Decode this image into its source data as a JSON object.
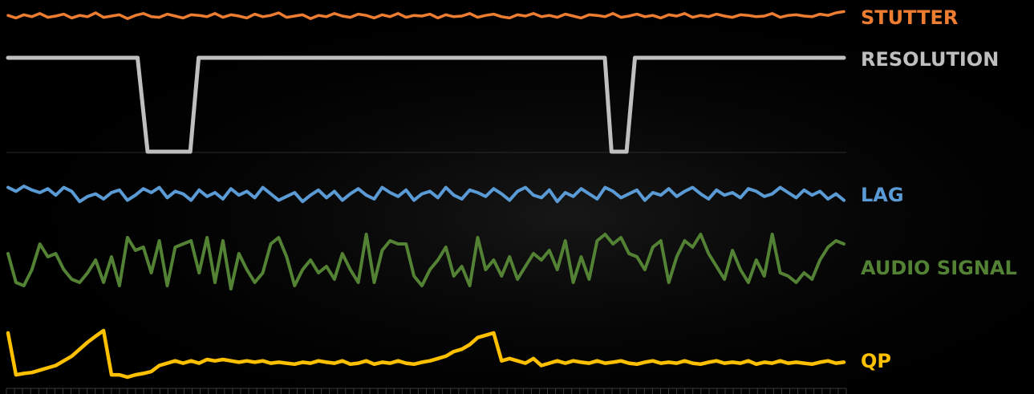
{
  "chart_data": {
    "type": "line",
    "title": "",
    "xlabel": "",
    "ylabel": "",
    "grid": false,
    "legend": "none",
    "series": [
      {
        "name": "STUTTER",
        "color": "#ED7D31",
        "values": [
          0.55,
          0.35,
          0.6,
          0.45,
          0.7,
          0.4,
          0.5,
          0.65,
          0.35,
          0.55,
          0.45,
          0.75,
          0.4,
          0.5,
          0.6,
          0.3,
          0.55,
          0.7,
          0.45,
          0.4,
          0.65,
          0.5,
          0.35,
          0.6,
          0.55,
          0.45,
          0.7,
          0.4,
          0.6,
          0.5,
          0.35,
          0.65,
          0.45,
          0.55,
          0.75,
          0.4,
          0.5,
          0.6,
          0.3,
          0.55,
          0.45,
          0.7,
          0.5,
          0.4,
          0.65,
          0.55,
          0.35,
          0.6,
          0.45,
          0.7,
          0.4,
          0.55,
          0.5,
          0.65,
          0.35,
          0.6,
          0.45,
          0.5,
          0.7,
          0.4,
          0.55,
          0.65,
          0.45,
          0.35,
          0.6,
          0.5,
          0.7,
          0.45,
          0.55,
          0.4,
          0.65,
          0.5,
          0.35,
          0.6,
          0.55,
          0.45,
          0.7,
          0.4,
          0.5,
          0.65,
          0.45,
          0.55,
          0.35,
          0.6,
          0.5,
          0.7,
          0.4,
          0.55,
          0.45,
          0.65,
          0.5,
          0.4,
          0.6,
          0.55,
          0.45,
          0.5,
          0.7,
          0.4,
          0.55,
          0.6,
          0.5,
          0.45,
          0.65,
          0.55,
          0.75,
          0.85
        ]
      },
      {
        "name": "RESOLUTION",
        "color": "#BFBFBF",
        "x": [
          0,
          0.155,
          0.167,
          0.218,
          0.228,
          0.714,
          0.722,
          0.74,
          0.75,
          1
        ],
        "values": [
          1,
          1,
          0,
          0,
          1,
          1,
          0,
          0,
          1,
          1
        ]
      },
      {
        "name": "LAG",
        "color": "#5B9BD5",
        "values": [
          0.7,
          0.55,
          0.75,
          0.6,
          0.5,
          0.65,
          0.4,
          0.7,
          0.55,
          0.15,
          0.35,
          0.45,
          0.25,
          0.5,
          0.6,
          0.2,
          0.4,
          0.65,
          0.5,
          0.7,
          0.3,
          0.55,
          0.45,
          0.2,
          0.6,
          0.35,
          0.5,
          0.25,
          0.65,
          0.4,
          0.55,
          0.3,
          0.7,
          0.45,
          0.2,
          0.35,
          0.5,
          0.15,
          0.4,
          0.6,
          0.3,
          0.55,
          0.2,
          0.45,
          0.65,
          0.4,
          0.25,
          0.7,
          0.5,
          0.35,
          0.6,
          0.2,
          0.45,
          0.55,
          0.3,
          0.7,
          0.4,
          0.25,
          0.6,
          0.5,
          0.35,
          0.65,
          0.45,
          0.2,
          0.55,
          0.7,
          0.4,
          0.3,
          0.6,
          0.15,
          0.5,
          0.35,
          0.65,
          0.45,
          0.25,
          0.7,
          0.55,
          0.3,
          0.45,
          0.6,
          0.2,
          0.5,
          0.4,
          0.65,
          0.35,
          0.55,
          0.7,
          0.45,
          0.25,
          0.6,
          0.4,
          0.5,
          0.3,
          0.65,
          0.55,
          0.35,
          0.45,
          0.7,
          0.5,
          0.3,
          0.6,
          0.4,
          0.55,
          0.25,
          0.45,
          0.2
        ]
      },
      {
        "name": "AUDIO SIGNAL",
        "color": "#548235",
        "values": [
          0.65,
          0.2,
          0.15,
          0.4,
          0.8,
          0.6,
          0.65,
          0.4,
          0.25,
          0.2,
          0.35,
          0.55,
          0.2,
          0.6,
          0.15,
          0.9,
          0.7,
          0.75,
          0.35,
          0.85,
          0.15,
          0.75,
          0.8,
          0.85,
          0.35,
          0.9,
          0.2,
          0.85,
          0.1,
          0.65,
          0.4,
          0.2,
          0.35,
          0.8,
          0.9,
          0.6,
          0.15,
          0.4,
          0.55,
          0.35,
          0.45,
          0.25,
          0.65,
          0.4,
          0.2,
          0.95,
          0.2,
          0.7,
          0.85,
          0.8,
          0.8,
          0.3,
          0.15,
          0.4,
          0.55,
          0.75,
          0.3,
          0.45,
          0.15,
          0.9,
          0.4,
          0.55,
          0.3,
          0.6,
          0.25,
          0.45,
          0.65,
          0.55,
          0.7,
          0.4,
          0.85,
          0.2,
          0.6,
          0.25,
          0.85,
          0.95,
          0.8,
          0.9,
          0.65,
          0.6,
          0.4,
          0.75,
          0.85,
          0.2,
          0.6,
          0.85,
          0.75,
          0.95,
          0.65,
          0.45,
          0.25,
          0.7,
          0.4,
          0.2,
          0.55,
          0.3,
          0.95,
          0.35,
          0.3,
          0.2,
          0.35,
          0.25,
          0.55,
          0.75,
          0.85,
          0.8
        ]
      },
      {
        "name": "QP",
        "color": "#FFC000",
        "values": [
          0.95,
          0.05,
          0.08,
          0.1,
          0.15,
          0.2,
          0.25,
          0.35,
          0.45,
          0.6,
          0.75,
          0.88,
          1.0,
          0.05,
          0.05,
          0.0,
          0.05,
          0.08,
          0.12,
          0.25,
          0.3,
          0.35,
          0.3,
          0.35,
          0.3,
          0.38,
          0.35,
          0.38,
          0.35,
          0.32,
          0.35,
          0.32,
          0.35,
          0.3,
          0.32,
          0.3,
          0.28,
          0.32,
          0.3,
          0.35,
          0.32,
          0.3,
          0.35,
          0.28,
          0.3,
          0.35,
          0.28,
          0.32,
          0.3,
          0.35,
          0.3,
          0.28,
          0.32,
          0.35,
          0.4,
          0.45,
          0.55,
          0.6,
          0.7,
          0.85,
          0.9,
          0.95,
          0.35,
          0.4,
          0.35,
          0.3,
          0.4,
          0.25,
          0.3,
          0.35,
          0.3,
          0.35,
          0.32,
          0.3,
          0.35,
          0.3,
          0.32,
          0.35,
          0.3,
          0.28,
          0.32,
          0.35,
          0.3,
          0.32,
          0.3,
          0.35,
          0.3,
          0.28,
          0.32,
          0.35,
          0.3,
          0.32,
          0.3,
          0.35,
          0.28,
          0.32,
          0.3,
          0.35,
          0.3,
          0.32,
          0.3,
          0.28,
          0.32,
          0.35,
          0.3,
          0.32
        ]
      }
    ]
  }
}
